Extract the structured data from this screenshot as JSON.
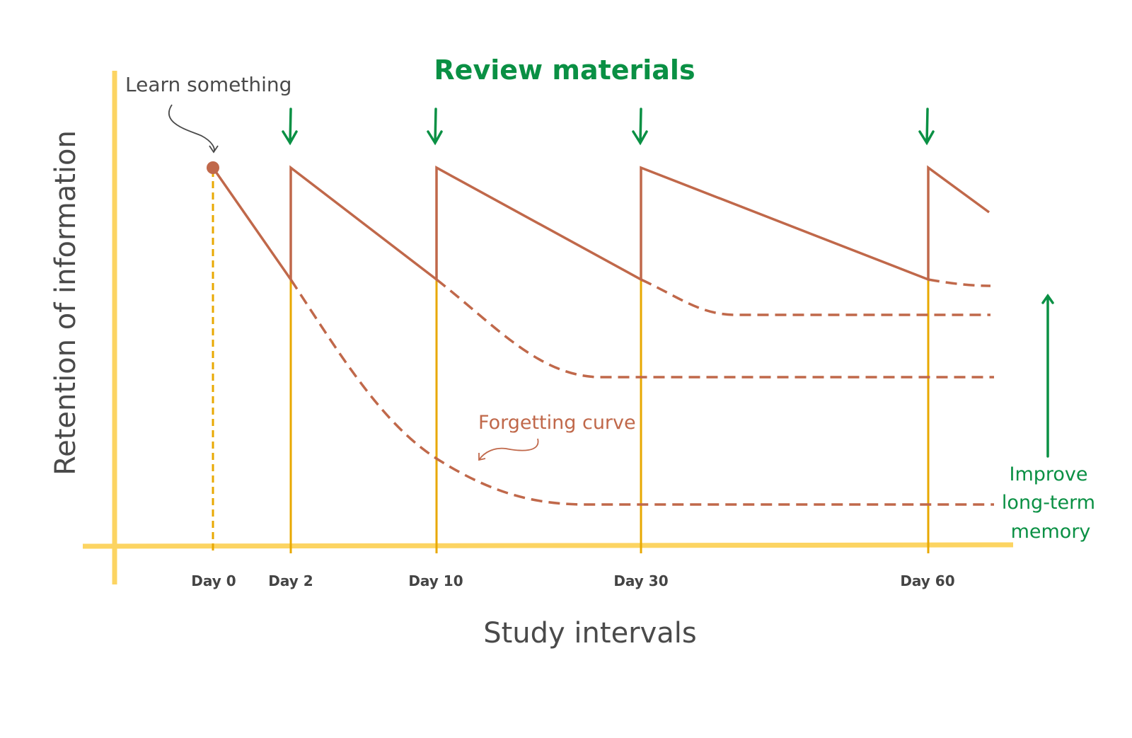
{
  "title": "Review materials",
  "learn_label": "Learn something",
  "forgetting_label": "Forgetting curve",
  "improve_label": [
    "Improve",
    "long-term",
    "memory"
  ],
  "y_axis_label": "Retention of information",
  "x_axis_label": "Study intervals",
  "ticks": [
    "Day 0",
    "Day 2",
    "Day 10",
    "Day 30",
    "Day 60"
  ],
  "colors": {
    "curve": "#c0684a",
    "axis": "#fcd462",
    "tick": "#e8a800",
    "accent": "#0a9044",
    "text": "#4a4a4a"
  }
}
